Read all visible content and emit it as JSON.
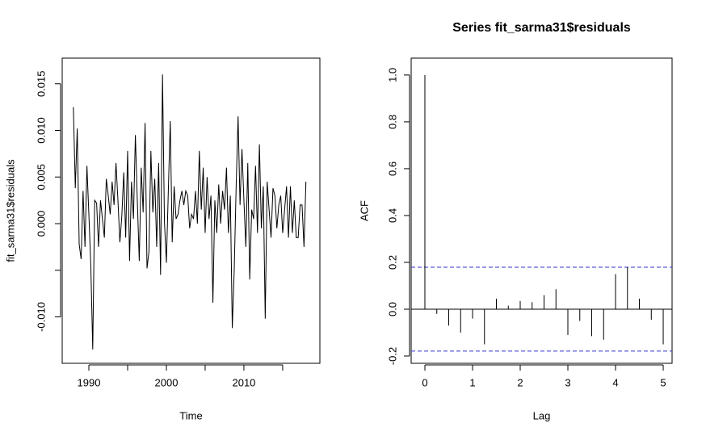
{
  "chart_data": [
    {
      "type": "line",
      "xlabel": "Time",
      "ylabel": "fit_sarma31$residuals",
      "color": "#000000",
      "x": [
        1988,
        1988.25,
        1988.5,
        1988.75,
        1989,
        1989.25,
        1989.5,
        1989.75,
        1990,
        1990.25,
        1990.5,
        1990.75,
        1991,
        1991.25,
        1991.5,
        1991.75,
        1992,
        1992.25,
        1992.5,
        1992.75,
        1993,
        1993.25,
        1993.5,
        1993.75,
        1994,
        1994.25,
        1994.5,
        1994.75,
        1995,
        1995.25,
        1995.5,
        1995.75,
        1996,
        1996.25,
        1996.5,
        1996.75,
        1997,
        1997.25,
        1997.5,
        1997.75,
        1998,
        1998.25,
        1998.5,
        1998.75,
        1999,
        1999.25,
        1999.5,
        1999.75,
        2000,
        2000.25,
        2000.5,
        2000.75,
        2001,
        2001.25,
        2001.5,
        2001.75,
        2002,
        2002.25,
        2002.5,
        2002.75,
        2003,
        2003.25,
        2003.5,
        2003.75,
        2004,
        2004.25,
        2004.5,
        2004.75,
        2005,
        2005.25,
        2005.5,
        2005.75,
        2006,
        2006.25,
        2006.5,
        2006.75,
        2007,
        2007.25,
        2007.5,
        2007.75,
        2008,
        2008.25,
        2008.5,
        2008.75,
        2009,
        2009.25,
        2009.5,
        2009.75,
        2010,
        2010.25,
        2010.5,
        2010.75,
        2011,
        2011.25,
        2011.5,
        2011.75,
        2012,
        2012.25,
        2012.5,
        2012.75,
        2013,
        2013.25,
        2013.5,
        2013.75,
        2014,
        2014.25,
        2014.5,
        2014.75,
        2015,
        2015.25,
        2015.5,
        2015.75,
        2016,
        2016.25,
        2016.5,
        2016.75,
        2017,
        2017.25,
        2017.5,
        2017.75,
        2018
      ],
      "values": [
        0.0125,
        0.0038,
        0.0102,
        -0.0022,
        -0.0038,
        0.0035,
        -0.0025,
        0.0062,
        0.001,
        -0.0045,
        -0.0135,
        0.0025,
        0.0022,
        -0.0025,
        0.0025,
        0.0005,
        -0.0015,
        0.0048,
        0.003,
        0.001,
        0.0045,
        0.002,
        0.0065,
        0.0025,
        -0.002,
        0.0008,
        0.0055,
        -0.0015,
        0.0078,
        -0.004,
        0.0045,
        0.0005,
        0.0095,
        0.0025,
        -0.004,
        0.006,
        0.0012,
        0.0108,
        -0.0048,
        -0.003,
        0.0078,
        0.0012,
        0.0048,
        -0.0025,
        0.0065,
        -0.0055,
        0.016,
        0.0002,
        -0.0042,
        0.0035,
        0.011,
        -0.002,
        0.004,
        0.0005,
        0.001,
        0.0025,
        0.0035,
        0.002,
        0.0035,
        0.003,
        -0.0005,
        0.001,
        0.0005,
        0.0035,
        0.0,
        0.0078,
        0.0015,
        0.006,
        -0.001,
        0.005,
        0.0005,
        0.003,
        -0.0085,
        0.0025,
        -0.001,
        0.0042,
        0.0,
        0.0035,
        0.0015,
        0.006,
        -0.001,
        0.003,
        -0.0112,
        -0.005,
        0.004,
        0.0115,
        0.002,
        0.008,
        0.0025,
        -0.0025,
        0.0065,
        -0.006,
        0.0015,
        0.0005,
        0.0062,
        -0.001,
        0.0085,
        -0.0005,
        0.004,
        -0.0102,
        0.0045,
        0.0015,
        -0.0015,
        0.0038,
        0.003,
        -0.0005,
        0.002,
        0.003,
        -0.001,
        0.0015,
        0.004,
        -0.0015,
        0.004,
        -0.001,
        0.0025,
        -0.0015,
        -0.0015,
        0.002,
        0.002,
        -0.0025,
        0.0045
      ],
      "xlim": [
        1986.56,
        2019.8
      ],
      "xticks": [
        1990,
        2000,
        2010
      ],
      "xminor_ticks": [
        1995,
        2005,
        2015
      ],
      "ylim": [
        -0.01498,
        0.01775
      ],
      "yticks": [
        {
          "value": -0.01,
          "label": "-0.010"
        },
        {
          "value": 0,
          "label": "0.000"
        },
        0.005,
        {
          "value": 0.01,
          "label": "0.010"
        },
        0.015
      ],
      "yminor_ticks": [
        -0.005
      ]
    },
    {
      "type": "acf",
      "title": "Series  fit_sarma31$residuals",
      "xlabel": "Lag",
      "ylabel": "ACF",
      "color": "#000000",
      "x": [
        0,
        0.25,
        0.5,
        0.75,
        1,
        1.25,
        1.5,
        1.75,
        2,
        2.25,
        2.5,
        2.75,
        3,
        3.25,
        3.5,
        3.75,
        4,
        4.25,
        4.5,
        4.75,
        5
      ],
      "values": [
        1.0,
        -0.02,
        -0.07,
        -0.1,
        -0.04,
        -0.15,
        0.045,
        0.015,
        0.035,
        0.03,
        0.06,
        0.085,
        -0.11,
        -0.05,
        -0.115,
        -0.13,
        0.15,
        0.18,
        0.045,
        -0.045,
        -0.15
      ],
      "ci": [
        -0.179,
        0.179
      ],
      "ci_color": "#3333cc",
      "xlim": [
        -0.288,
        5.186
      ],
      "xticks": [
        0,
        1,
        2,
        3,
        4,
        5
      ],
      "ylim": [
        -0.231,
        1.072
      ],
      "yticks": [
        -0.2,
        {
          "value": 0,
          "label": "0.0"
        },
        0.2,
        0.4,
        0.6,
        0.8,
        {
          "value": 1,
          "label": "1.0"
        }
      ]
    }
  ]
}
